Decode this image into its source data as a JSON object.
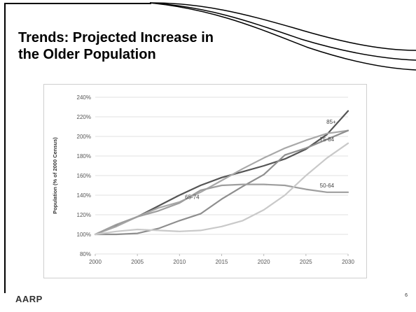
{
  "slide": {
    "title_line1": "Trends: Projected Increase in",
    "title_line2": "the Older Population",
    "logo_text": "AARP",
    "page_number": "6"
  },
  "colors": {
    "s85": "#555555",
    "s7584": "#a8a8a8",
    "s6574": "#8e8e8e",
    "s5064": "#9e9e9e",
    "light": "#c9c9c9"
  },
  "chart_data": {
    "type": "line",
    "title": "",
    "xlabel": "",
    "ylabel": "Population (% of 2000 Census)",
    "x": [
      2000,
      2002.5,
      2005,
      2007.5,
      2010,
      2012.5,
      2015,
      2017.5,
      2020,
      2022.5,
      2025,
      2027.5,
      2030
    ],
    "x_ticks": [
      "2000",
      "2005",
      "2010",
      "2015",
      "2020",
      "2025",
      "2030"
    ],
    "y_ticks": [
      "80%",
      "100%",
      "120%",
      "140%",
      "160%",
      "180%",
      "200%",
      "220%",
      "240%"
    ],
    "xlim": [
      2000,
      2030
    ],
    "ylim": [
      80,
      240
    ],
    "grid": "horizontal",
    "series": [
      {
        "name": "85+",
        "color_key": "s85",
        "values": [
          100,
          109,
          118,
          129,
          140,
          150,
          158,
          164,
          170,
          177,
          187,
          202,
          226
        ]
      },
      {
        "name": "75-84",
        "color_key": "s7584",
        "values": [
          100,
          108,
          118,
          127,
          133,
          143,
          155,
          167,
          178,
          188,
          196,
          203,
          206
        ]
      },
      {
        "name": "65-74",
        "color_key": "s6574",
        "values": [
          100,
          100,
          101,
          106,
          114,
          121,
          136,
          149,
          161,
          181,
          188,
          197,
          206
        ]
      },
      {
        "name": "50-64",
        "color_key": "s5064",
        "values": [
          100,
          110,
          118,
          124,
          132,
          145,
          150,
          151,
          151,
          150,
          146,
          143,
          143
        ]
      },
      {
        "name": "",
        "color_key": "light",
        "values": [
          100,
          103,
          105,
          104,
          103,
          104,
          108,
          114,
          125,
          140,
          160,
          178,
          193
        ]
      }
    ],
    "series_labels": [
      {
        "text": "85+",
        "x": 2028,
        "y": 213
      },
      {
        "text": "75-84",
        "x": 2027.5,
        "y": 195
      },
      {
        "text": "65-74",
        "x": 2011.5,
        "y": 136
      },
      {
        "text": "50-64",
        "x": 2027.5,
        "y": 148
      }
    ]
  }
}
